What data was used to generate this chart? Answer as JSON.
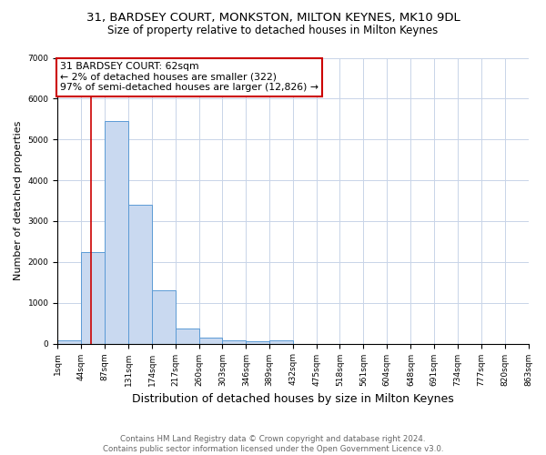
{
  "title_line1": "31, BARDSEY COURT, MONKSTON, MILTON KEYNES, MK10 9DL",
  "title_line2": "Size of property relative to detached houses in Milton Keynes",
  "xlabel": "Distribution of detached houses by size in Milton Keynes",
  "ylabel": "Number of detached properties",
  "footnote": "Contains HM Land Registry data © Crown copyright and database right 2024.\nContains public sector information licensed under the Open Government Licence v3.0.",
  "bar_edges": [
    1,
    44,
    87,
    131,
    174,
    217,
    260,
    303,
    346,
    389,
    432,
    475,
    518,
    561,
    604,
    648,
    691,
    734,
    777,
    820,
    863
  ],
  "bar_heights": [
    75,
    2250,
    5450,
    3400,
    1300,
    370,
    155,
    70,
    50,
    70,
    0,
    0,
    0,
    0,
    0,
    0,
    0,
    0,
    0,
    0
  ],
  "bar_color": "#c9d9f0",
  "bar_edge_color": "#5b9bd5",
  "property_line_x": 62,
  "property_line_color": "#cc0000",
  "annotation_text": "31 BARDSEY COURT: 62sqm\n← 2% of detached houses are smaller (322)\n97% of semi-detached houses are larger (12,826) →",
  "annotation_box_color": "#ffffff",
  "annotation_box_edge_color": "#cc0000",
  "ylim": [
    0,
    7000
  ],
  "yticks": [
    0,
    1000,
    2000,
    3000,
    4000,
    5000,
    6000,
    7000
  ],
  "x_tick_labels": [
    "1sqm",
    "44sqm",
    "87sqm",
    "131sqm",
    "174sqm",
    "217sqm",
    "260sqm",
    "303sqm",
    "346sqm",
    "389sqm",
    "432sqm",
    "475sqm",
    "518sqm",
    "561sqm",
    "604sqm",
    "648sqm",
    "691sqm",
    "734sqm",
    "777sqm",
    "820sqm",
    "863sqm"
  ],
  "background_color": "#ffffff",
  "grid_color": "#c8d4e8",
  "title_fontsize": 9.5,
  "subtitle_fontsize": 8.5,
  "tick_fontsize": 6.5,
  "ylabel_fontsize": 8,
  "xlabel_fontsize": 9,
  "annotation_fontsize": 7.8,
  "footnote_fontsize": 6.2
}
